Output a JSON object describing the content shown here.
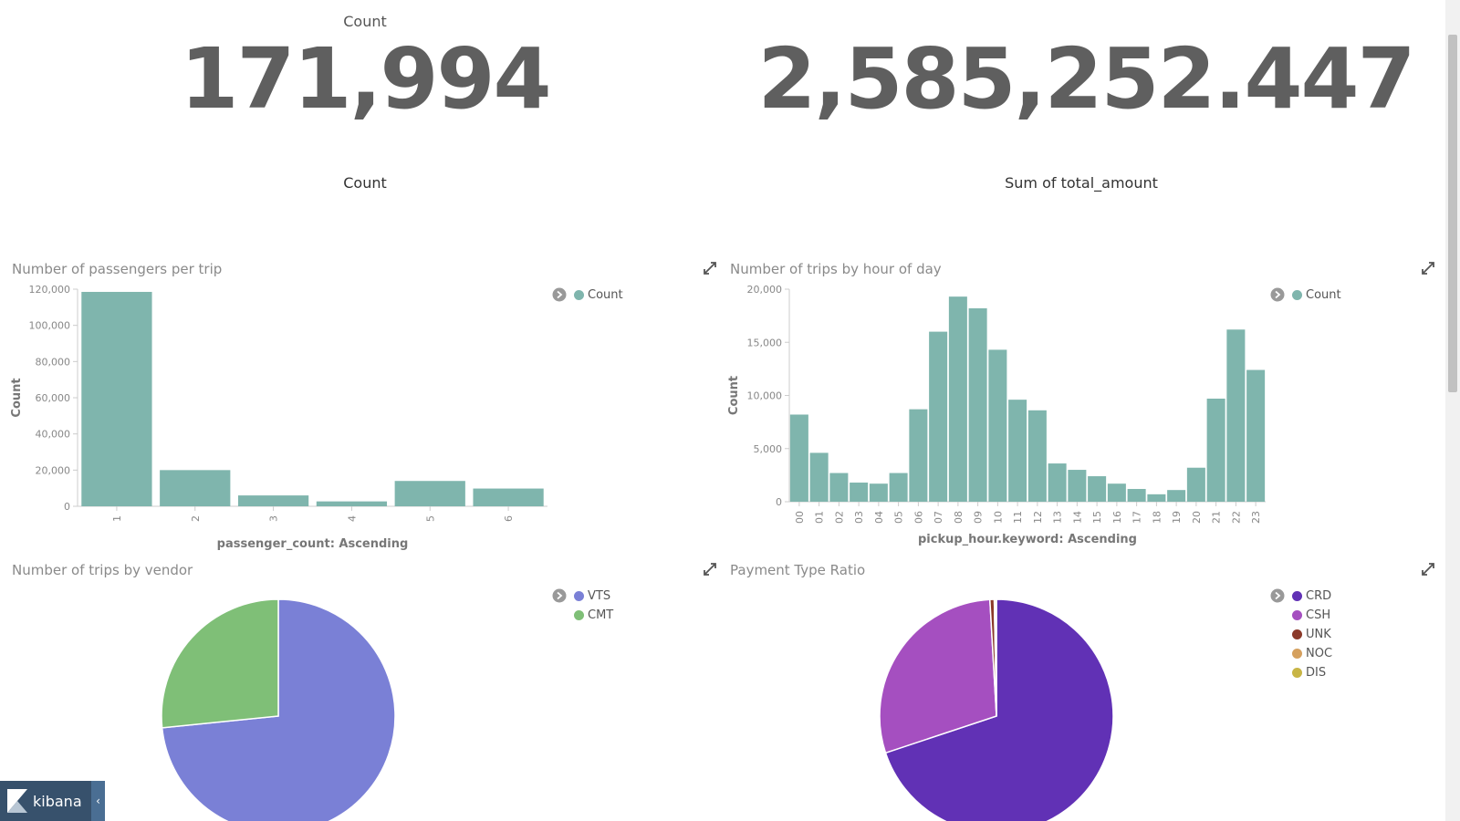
{
  "metrics": [
    {
      "top_label": "Count",
      "value": "171,994",
      "bottom_label": "Count"
    },
    {
      "top_label": "",
      "value": "2,585,252.447",
      "bottom_label": "Sum of total_amount"
    }
  ],
  "panels": {
    "passengers": {
      "title": "Number of passengers per trip",
      "legend": [
        "Count"
      ]
    },
    "hours": {
      "title": "Number of trips by hour of day",
      "legend": [
        "Count"
      ]
    },
    "vendor": {
      "title": "Number of trips by vendor",
      "legend": [
        "VTS",
        "CMT"
      ]
    },
    "payment": {
      "title": "Payment Type Ratio",
      "legend": [
        "CRD",
        "CSH",
        "UNK",
        "NOC",
        "DIS"
      ]
    }
  },
  "chart_data": [
    {
      "type": "bar",
      "title": "Number of passengers per trip",
      "xlabel": "passenger_count: Ascending",
      "ylabel": "Count",
      "ylim": [
        0,
        120000
      ],
      "yticks": [
        "0",
        "20,000",
        "40,000",
        "60,000",
        "80,000",
        "100,000",
        "120,000"
      ],
      "categories": [
        "1",
        "2",
        "3",
        "4",
        "5",
        "6"
      ],
      "series": [
        {
          "name": "Count",
          "values": [
            118500,
            20000,
            6000,
            2700,
            14000,
            9800
          ]
        }
      ],
      "color": "#7fb5ad",
      "legend": "top-right"
    },
    {
      "type": "bar",
      "title": "Number of trips by hour of day",
      "xlabel": "pickup_hour.keyword: Ascending",
      "ylabel": "Count",
      "ylim": [
        0,
        20000
      ],
      "yticks": [
        "0",
        "5,000",
        "10,000",
        "15,000",
        "20,000"
      ],
      "categories": [
        "00",
        "01",
        "02",
        "03",
        "04",
        "05",
        "06",
        "07",
        "08",
        "09",
        "10",
        "11",
        "12",
        "13",
        "14",
        "15",
        "16",
        "17",
        "18",
        "19",
        "20",
        "21",
        "22",
        "23"
      ],
      "series": [
        {
          "name": "Count",
          "values": [
            8200,
            4600,
            2700,
            1800,
            1700,
            2700,
            8700,
            16000,
            19300,
            18200,
            14300,
            9600,
            8600,
            3600,
            3000,
            2400,
            1700,
            1200,
            700,
            1100,
            3200,
            9700,
            16200,
            12400
          ]
        }
      ],
      "color": "#7fb5ad",
      "legend": "top-right"
    },
    {
      "type": "pie",
      "title": "Number of trips by vendor",
      "categories": [
        "VTS",
        "CMT"
      ],
      "values": [
        73.4,
        26.6
      ],
      "colors": [
        "#7a80d6",
        "#7fbf77"
      ],
      "legend": "top-right"
    },
    {
      "type": "pie",
      "title": "Payment Type Ratio",
      "categories": [
        "CRD",
        "CSH",
        "UNK",
        "NOC",
        "DIS"
      ],
      "values": [
        69.9,
        29.2,
        0.6,
        0.2,
        0.1
      ],
      "colors": [
        "#6131b5",
        "#a54fc0",
        "#8b3a2a",
        "#d5a05e",
        "#c8b545"
      ],
      "legend": "top-right"
    }
  ],
  "footer": {
    "brand": "kibana",
    "collapse_icon": "chevron-left-icon"
  }
}
